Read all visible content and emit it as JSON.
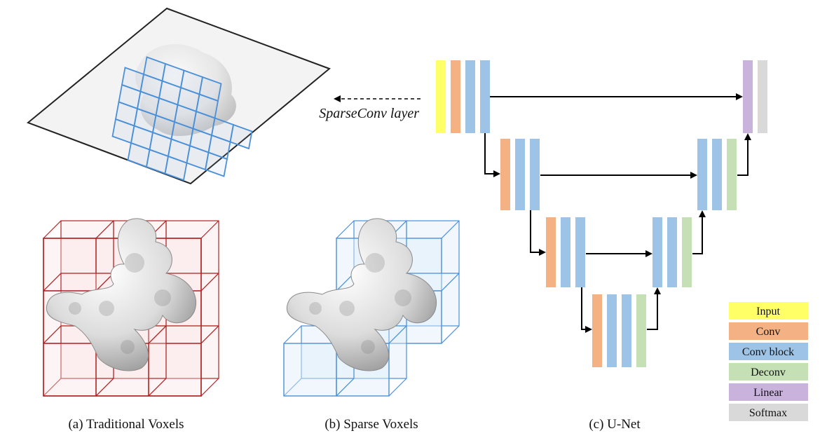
{
  "panels": {
    "a_caption": "(a) Traditional Voxels",
    "b_caption": "(b) Sparse Voxels",
    "c_caption": "(c) U-Net"
  },
  "sparseconv_label": "SparseConv layer",
  "legend": [
    {
      "label": "Input",
      "color": "#ffff66"
    },
    {
      "label": "Conv",
      "color": "#f4b183"
    },
    {
      "label": "Conv block",
      "color": "#9dc3e6"
    },
    {
      "label": "Deconv",
      "color": "#c5e0b4"
    },
    {
      "label": "Linear",
      "color": "#c9b3dd"
    },
    {
      "label": "Softmax",
      "color": "#d9d9d9"
    }
  ],
  "colors": {
    "traditional_voxel": "#b22222",
    "sparse_voxel": "#4a90d9",
    "arrow": "#000000"
  }
}
